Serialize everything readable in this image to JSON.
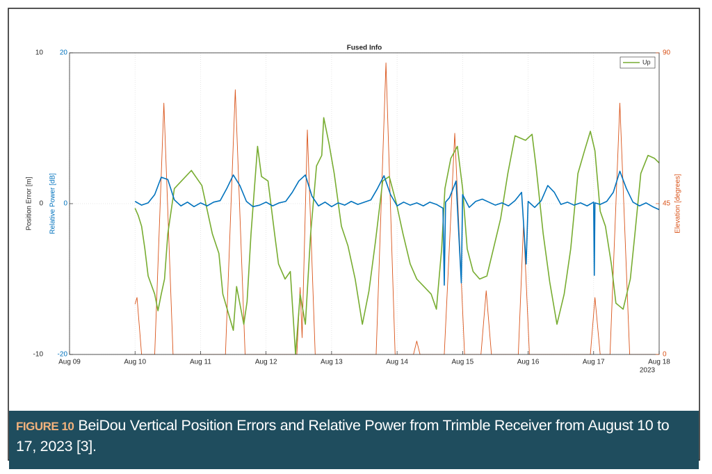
{
  "chart_data": {
    "type": "line",
    "title": "Fused Info",
    "ylabel": "Position Error [m]",
    "y3label": "Relative Power [dB]",
    "y2label": "Elevation [degrees]",
    "x_secondary_label": "2023",
    "xlim": [
      9,
      18
    ],
    "xticks": [
      {
        "value": 9,
        "label": "Aug 09"
      },
      {
        "value": 10,
        "label": "Aug 10"
      },
      {
        "value": 11,
        "label": "Aug 11"
      },
      {
        "value": 12,
        "label": "Aug 12"
      },
      {
        "value": 13,
        "label": "Aug 13"
      },
      {
        "value": 14,
        "label": "Aug 14"
      },
      {
        "value": 15,
        "label": "Aug 15"
      },
      {
        "value": 16,
        "label": "Aug 16"
      },
      {
        "value": 17,
        "label": "Aug 17"
      },
      {
        "value": 18,
        "label": "Aug 18"
      }
    ],
    "ylim": [
      -10,
      10
    ],
    "yticks": [
      -10,
      0,
      10
    ],
    "y3lim": [
      -20,
      20
    ],
    "y3ticks": [
      -20,
      0,
      20
    ],
    "y2lim": [
      0,
      90
    ],
    "y2ticks": [
      0,
      45,
      90
    ],
    "grid": true,
    "legend": "upper right",
    "series": [
      {
        "name": "Up",
        "color": "#77ac30",
        "axis": "y",
        "x": [
          10.0,
          10.05,
          10.1,
          10.15,
          10.2,
          10.3,
          10.35,
          10.4,
          10.45,
          10.5,
          10.6,
          10.86,
          11.02,
          11.18,
          11.28,
          11.34,
          11.42,
          11.5,
          11.55,
          11.66,
          11.71,
          11.77,
          11.87,
          11.93,
          12.03,
          12.13,
          12.19,
          12.29,
          12.37,
          12.45,
          12.52,
          12.6,
          12.68,
          12.77,
          12.85,
          12.88,
          12.96,
          13.04,
          13.15,
          13.25,
          13.36,
          13.47,
          13.57,
          13.67,
          13.78,
          13.88,
          13.99,
          14.09,
          14.2,
          14.3,
          14.41,
          14.52,
          14.6,
          14.68,
          14.73,
          14.82,
          14.92,
          15.0,
          15.07,
          15.16,
          15.26,
          15.37,
          15.47,
          15.58,
          15.69,
          15.8,
          15.96,
          16.06,
          16.12,
          16.23,
          16.33,
          16.44,
          16.55,
          16.65,
          16.76,
          16.86,
          16.95,
          17.02,
          17.1,
          17.18,
          17.27,
          17.34,
          17.45,
          17.56,
          17.63,
          17.72,
          17.83,
          17.93,
          18.0
        ],
        "values": [
          -0.3,
          -0.8,
          -1.5,
          -3,
          -4.8,
          -6,
          -7.1,
          -6,
          -5,
          -2,
          1,
          2.2,
          1.2,
          -2,
          -3.3,
          -6,
          -7.2,
          -8.4,
          -5.5,
          -8,
          -6.5,
          -2,
          3.8,
          1.8,
          1.5,
          -2,
          -4,
          -5,
          -4.5,
          -10,
          -6,
          -8,
          -2,
          2.5,
          3.2,
          5.7,
          4,
          2,
          -1.5,
          -2.8,
          -5,
          -8,
          -5.8,
          -2.5,
          1.5,
          1.8,
          0,
          -2,
          -4,
          -5,
          -5.5,
          -6,
          -7,
          -3,
          1,
          3,
          3.8,
          1,
          -3,
          -4.5,
          -5,
          -4.8,
          -3,
          -1,
          2,
          4.5,
          4.2,
          4.6,
          2.5,
          -2,
          -5.2,
          -8,
          -6,
          -3,
          2,
          3.5,
          4.8,
          3.5,
          -0.5,
          -1.5,
          -4,
          -6.6,
          -7,
          -5,
          -2,
          2,
          3.2,
          3,
          2.7
        ]
      },
      {
        "color": "#0072bd",
        "axis": "y3",
        "x": [
          10.0,
          10.1,
          10.2,
          10.3,
          10.4,
          10.5,
          10.6,
          10.7,
          10.8,
          10.9,
          11.0,
          11.1,
          11.2,
          11.3,
          11.4,
          11.5,
          11.6,
          11.7,
          11.8,
          11.9,
          12.0,
          12.1,
          12.2,
          12.3,
          12.4,
          12.5,
          12.6,
          12.7,
          12.8,
          12.9,
          13.0,
          13.1,
          13.2,
          13.3,
          13.4,
          13.5,
          13.6,
          13.7,
          13.8,
          13.9,
          14.0,
          14.1,
          14.2,
          14.3,
          14.4,
          14.5,
          14.6,
          14.7,
          14.72,
          14.74,
          14.8,
          14.9,
          14.98,
          15.0,
          15.1,
          15.2,
          15.3,
          15.4,
          15.5,
          15.6,
          15.7,
          15.8,
          15.9,
          15.97,
          16.0,
          16.1,
          16.2,
          16.3,
          16.4,
          16.5,
          16.6,
          16.7,
          16.8,
          16.9,
          17.0,
          17.01,
          17.02,
          17.1,
          17.2,
          17.3,
          17.4,
          17.5,
          17.6,
          17.7,
          17.8,
          17.9,
          18.0
        ],
        "values": [
          0.3,
          -0.2,
          0.1,
          1.2,
          3.5,
          3.2,
          0.5,
          -0.3,
          0.2,
          -0.4,
          0.1,
          -0.3,
          0.2,
          0.4,
          2.0,
          3.8,
          2.4,
          0.3,
          -0.4,
          -0.2,
          0.2,
          -0.3,
          0.1,
          0.3,
          1.5,
          3.0,
          3.8,
          1.0,
          -0.3,
          0.2,
          -0.4,
          0.1,
          -0.2,
          0.3,
          -0.1,
          0.2,
          0.5,
          2.0,
          3.7,
          1.2,
          -0.3,
          0.2,
          -0.2,
          0.1,
          -0.3,
          0.2,
          -0.1,
          -0.6,
          -10.8,
          0.2,
          0.8,
          3.0,
          -10.5,
          1.2,
          -0.5,
          0.3,
          0.6,
          0.2,
          -0.2,
          0.1,
          -0.3,
          0.4,
          1.5,
          -8,
          0.3,
          -0.5,
          0.4,
          2.4,
          1.5,
          -0.1,
          0.2,
          -0.2,
          0.1,
          -0.3,
          0.2,
          -9.5,
          0.1,
          -0.1,
          0.3,
          1.5,
          4.3,
          2.0,
          0.2,
          -0.3,
          0.1,
          -0.4,
          -0.8
        ]
      },
      {
        "color": "#d95319",
        "axis": "y2",
        "x": [
          10.0,
          10.03,
          10.1,
          10.3,
          10.44,
          10.58,
          11.38,
          11.53,
          11.68,
          12.47,
          12.52,
          12.55,
          12.63,
          12.75,
          13.68,
          13.83,
          13.97,
          14.25,
          14.3,
          14.35,
          14.72,
          14.88,
          15.03,
          15.28,
          15.36,
          15.44,
          15.85,
          15.93,
          16.02,
          16.95,
          17.02,
          17.1,
          17.25,
          17.4,
          17.55,
          18.0
        ],
        "values": [
          15,
          17,
          0,
          0,
          75,
          0,
          0,
          79,
          0,
          0,
          20,
          5,
          67,
          0,
          0,
          87,
          0,
          0,
          4,
          0,
          0,
          66,
          0,
          0,
          19,
          0,
          0,
          39,
          0,
          0,
          17,
          0,
          0,
          75,
          0,
          0
        ]
      }
    ]
  },
  "caption": {
    "label": "FIGURE 10",
    "text": "BeiDou Vertical Position Errors and Relative Power from Trimble Receiver from August 10 to 17, 2023 [3]."
  }
}
